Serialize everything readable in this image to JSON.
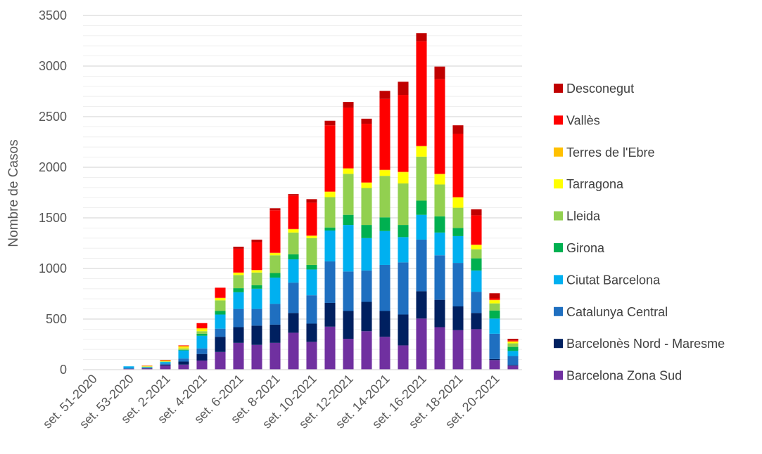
{
  "chart_data": {
    "type": "bar",
    "stacked": true,
    "ylabel": "Nombre de Casos",
    "xlabel": "",
    "ylim": [
      0,
      3500
    ],
    "yticks": [
      0,
      500,
      1000,
      1500,
      2000,
      2500,
      3000,
      3500
    ],
    "grid": "horizontal major and minor",
    "legend_position": "right",
    "categories": [
      "set. 51-2020",
      "set. 52-2020",
      "set. 53-2020",
      "set. 1-2021",
      "set. 2-2021",
      "set. 3-2021",
      "set. 4-2021",
      "set. 5-2021",
      "set. 6-2021",
      "set. 7-2021",
      "set. 8-2021",
      "set. 9-2021",
      "set. 10-2021",
      "set. 11-2021",
      "set. 12-2021",
      "set. 13-2021",
      "set. 14-2021",
      "set. 15-2021",
      "set. 16-2021",
      "set. 17-2021",
      "set. 18-2021",
      "set. 19-2021",
      "set. 20-2021",
      "set. 21-2021"
    ],
    "shown_tick_labels": [
      "set. 51-2020",
      "set. 53-2020",
      "set. 2-2021",
      "set. 4-2021",
      "set. 6-2021",
      "set. 8-2021",
      "set. 10-2021",
      "set. 12-2021",
      "set. 14-2021",
      "set. 16-2021",
      "set. 18-2021",
      "set. 20-2021"
    ],
    "series": [
      {
        "name": "Barcelona Zona Sud",
        "color": "#7030a0",
        "values": [
          2,
          0,
          8,
          12,
          40,
          50,
          90,
          175,
          265,
          245,
          265,
          365,
          275,
          425,
          305,
          380,
          325,
          240,
          505,
          420,
          390,
          400,
          95,
          40
        ]
      },
      {
        "name": "Barcelonès Nord - Maresme",
        "color": "#002060",
        "values": [
          0,
          0,
          0,
          3,
          10,
          30,
          65,
          150,
          155,
          190,
          180,
          195,
          180,
          235,
          275,
          290,
          255,
          305,
          270,
          270,
          235,
          160,
          10,
          5
        ]
      },
      {
        "name": "Catalunya Central",
        "color": "#1f6fc0",
        "values": [
          0,
          0,
          10,
          5,
          10,
          30,
          55,
          80,
          180,
          165,
          205,
          300,
          280,
          410,
          390,
          310,
          455,
          515,
          510,
          440,
          430,
          210,
          250,
          90
        ]
      },
      {
        "name": "Ciutat Barcelona",
        "color": "#00b0f0",
        "values": [
          0,
          0,
          15,
          5,
          15,
          80,
          125,
          140,
          165,
          200,
          260,
          230,
          255,
          305,
          460,
          320,
          335,
          250,
          245,
          225,
          265,
          210,
          150,
          50
        ]
      },
      {
        "name": "Girona",
        "color": "#00b050",
        "values": [
          0,
          0,
          0,
          0,
          2,
          5,
          20,
          35,
          40,
          35,
          45,
          50,
          45,
          30,
          100,
          130,
          135,
          120,
          140,
          160,
          80,
          120,
          80,
          40
        ]
      },
      {
        "name": "Lleida",
        "color": "#92d050",
        "values": [
          0,
          0,
          0,
          5,
          5,
          15,
          25,
          105,
          130,
          125,
          175,
          215,
          265,
          300,
          405,
          365,
          410,
          410,
          435,
          315,
          200,
          90,
          70,
          35
        ]
      },
      {
        "name": "Tarragona",
        "color": "#ffff00",
        "values": [
          0,
          0,
          0,
          3,
          5,
          10,
          20,
          20,
          20,
          20,
          20,
          30,
          20,
          50,
          50,
          50,
          55,
          110,
          100,
          100,
          100,
          40,
          30,
          15
        ]
      },
      {
        "name": "Terres de l'Ebre",
        "color": "#ffc000",
        "values": [
          0,
          0,
          0,
          5,
          5,
          15,
          10,
          5,
          5,
          5,
          5,
          5,
          5,
          5,
          5,
          5,
          5,
          5,
          5,
          5,
          5,
          5,
          5,
          5
        ]
      },
      {
        "name": "Vallès",
        "color": "#ff0000",
        "values": [
          0,
          0,
          0,
          2,
          5,
          5,
          50,
          100,
          235,
          275,
          420,
          330,
          325,
          655,
          600,
          580,
          700,
          760,
          1035,
          935,
          625,
          290,
          15,
          10
        ]
      },
      {
        "name": "Desconegut",
        "color": "#c00000",
        "values": [
          0,
          0,
          0,
          0,
          0,
          0,
          0,
          0,
          20,
          25,
          20,
          15,
          35,
          45,
          55,
          50,
          80,
          130,
          80,
          125,
          85,
          60,
          50,
          15
        ]
      }
    ]
  }
}
